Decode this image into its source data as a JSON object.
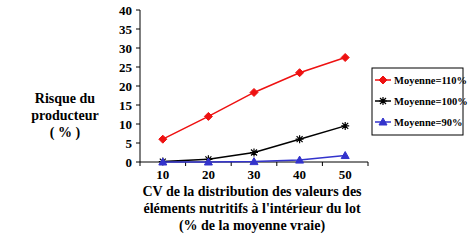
{
  "chart_data": {
    "type": "line",
    "y_label": "Risque du\nproducteur\n( % )",
    "x_label": "CV de la distribution des valeurs des\néléments nutritifs à l'intérieur du lot\n(% de la moyenne vraie)",
    "categories": [
      "10",
      "20",
      "30",
      "40",
      "50"
    ],
    "series": [
      {
        "name": "Moyenne=110%",
        "color": "#ee1111",
        "marker": "diamond",
        "values": [
          6,
          12,
          18.3,
          23.5,
          27.5
        ]
      },
      {
        "name": "Moyenne=100%",
        "color": "#000000",
        "marker": "asterisk",
        "values": [
          0.1,
          0.7,
          2.5,
          6,
          9.5
        ]
      },
      {
        "name": "Moyenne=90%",
        "color": "#3333cc",
        "marker": "triangle",
        "values": [
          0,
          0,
          0.1,
          0.5,
          1.7
        ]
      }
    ],
    "ylim": [
      0,
      40
    ],
    "yticks": [
      0,
      5,
      10,
      15,
      20,
      25,
      30,
      35,
      40
    ],
    "grid": false,
    "legend": "right"
  }
}
